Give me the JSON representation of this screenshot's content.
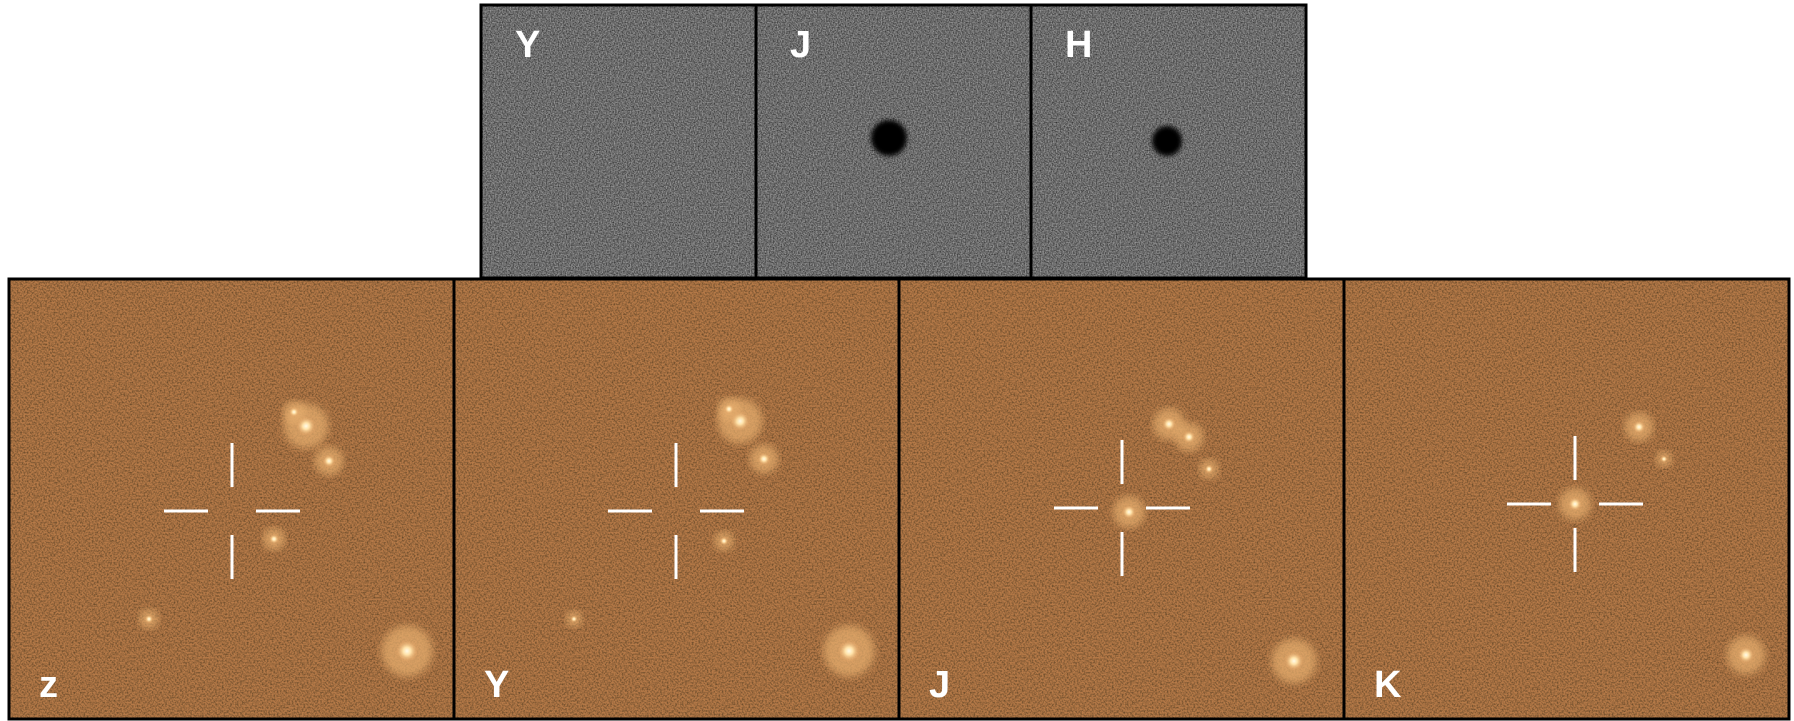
{
  "top_panels": [
    {
      "label": "Y"
    },
    {
      "label": "J"
    },
    {
      "label": "H"
    }
  ],
  "bottom_panels": [
    {
      "label": "z"
    },
    {
      "label": "Y"
    },
    {
      "label": "J"
    },
    {
      "label": "K"
    }
  ]
}
